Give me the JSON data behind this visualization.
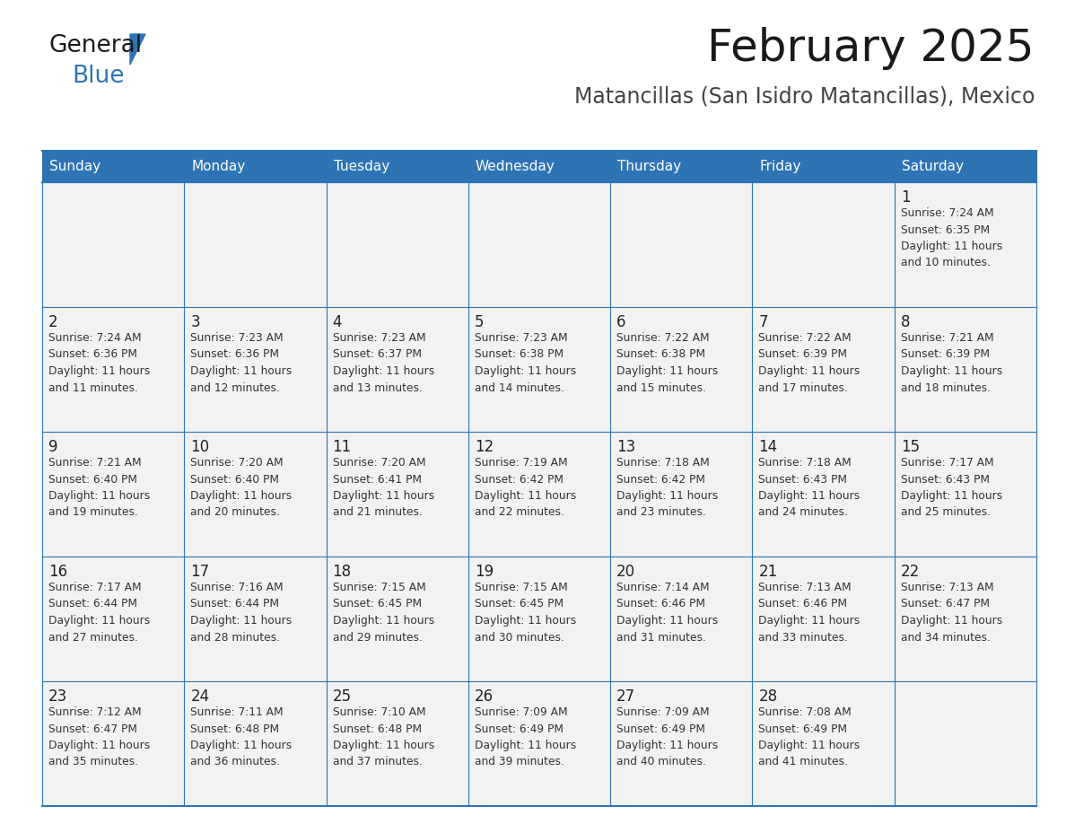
{
  "title": "February 2025",
  "subtitle": "Matancillas (San Isidro Matancillas), Mexico",
  "header_color": "#2e74b5",
  "header_text_color": "#ffffff",
  "cell_bg_even": "#f2f2f2",
  "cell_bg_odd": "#ffffff",
  "border_color": "#2e74b5",
  "day_headers": [
    "Sunday",
    "Monday",
    "Tuesday",
    "Wednesday",
    "Thursday",
    "Friday",
    "Saturday"
  ],
  "weeks": [
    [
      {
        "day": "",
        "info": ""
      },
      {
        "day": "",
        "info": ""
      },
      {
        "day": "",
        "info": ""
      },
      {
        "day": "",
        "info": ""
      },
      {
        "day": "",
        "info": ""
      },
      {
        "day": "",
        "info": ""
      },
      {
        "day": "1",
        "info": "Sunrise: 7:24 AM\nSunset: 6:35 PM\nDaylight: 11 hours\nand 10 minutes."
      }
    ],
    [
      {
        "day": "2",
        "info": "Sunrise: 7:24 AM\nSunset: 6:36 PM\nDaylight: 11 hours\nand 11 minutes."
      },
      {
        "day": "3",
        "info": "Sunrise: 7:23 AM\nSunset: 6:36 PM\nDaylight: 11 hours\nand 12 minutes."
      },
      {
        "day": "4",
        "info": "Sunrise: 7:23 AM\nSunset: 6:37 PM\nDaylight: 11 hours\nand 13 minutes."
      },
      {
        "day": "5",
        "info": "Sunrise: 7:23 AM\nSunset: 6:38 PM\nDaylight: 11 hours\nand 14 minutes."
      },
      {
        "day": "6",
        "info": "Sunrise: 7:22 AM\nSunset: 6:38 PM\nDaylight: 11 hours\nand 15 minutes."
      },
      {
        "day": "7",
        "info": "Sunrise: 7:22 AM\nSunset: 6:39 PM\nDaylight: 11 hours\nand 17 minutes."
      },
      {
        "day": "8",
        "info": "Sunrise: 7:21 AM\nSunset: 6:39 PM\nDaylight: 11 hours\nand 18 minutes."
      }
    ],
    [
      {
        "day": "9",
        "info": "Sunrise: 7:21 AM\nSunset: 6:40 PM\nDaylight: 11 hours\nand 19 minutes."
      },
      {
        "day": "10",
        "info": "Sunrise: 7:20 AM\nSunset: 6:40 PM\nDaylight: 11 hours\nand 20 minutes."
      },
      {
        "day": "11",
        "info": "Sunrise: 7:20 AM\nSunset: 6:41 PM\nDaylight: 11 hours\nand 21 minutes."
      },
      {
        "day": "12",
        "info": "Sunrise: 7:19 AM\nSunset: 6:42 PM\nDaylight: 11 hours\nand 22 minutes."
      },
      {
        "day": "13",
        "info": "Sunrise: 7:18 AM\nSunset: 6:42 PM\nDaylight: 11 hours\nand 23 minutes."
      },
      {
        "day": "14",
        "info": "Sunrise: 7:18 AM\nSunset: 6:43 PM\nDaylight: 11 hours\nand 24 minutes."
      },
      {
        "day": "15",
        "info": "Sunrise: 7:17 AM\nSunset: 6:43 PM\nDaylight: 11 hours\nand 25 minutes."
      }
    ],
    [
      {
        "day": "16",
        "info": "Sunrise: 7:17 AM\nSunset: 6:44 PM\nDaylight: 11 hours\nand 27 minutes."
      },
      {
        "day": "17",
        "info": "Sunrise: 7:16 AM\nSunset: 6:44 PM\nDaylight: 11 hours\nand 28 minutes."
      },
      {
        "day": "18",
        "info": "Sunrise: 7:15 AM\nSunset: 6:45 PM\nDaylight: 11 hours\nand 29 minutes."
      },
      {
        "day": "19",
        "info": "Sunrise: 7:15 AM\nSunset: 6:45 PM\nDaylight: 11 hours\nand 30 minutes."
      },
      {
        "day": "20",
        "info": "Sunrise: 7:14 AM\nSunset: 6:46 PM\nDaylight: 11 hours\nand 31 minutes."
      },
      {
        "day": "21",
        "info": "Sunrise: 7:13 AM\nSunset: 6:46 PM\nDaylight: 11 hours\nand 33 minutes."
      },
      {
        "day": "22",
        "info": "Sunrise: 7:13 AM\nSunset: 6:47 PM\nDaylight: 11 hours\nand 34 minutes."
      }
    ],
    [
      {
        "day": "23",
        "info": "Sunrise: 7:12 AM\nSunset: 6:47 PM\nDaylight: 11 hours\nand 35 minutes."
      },
      {
        "day": "24",
        "info": "Sunrise: 7:11 AM\nSunset: 6:48 PM\nDaylight: 11 hours\nand 36 minutes."
      },
      {
        "day": "25",
        "info": "Sunrise: 7:10 AM\nSunset: 6:48 PM\nDaylight: 11 hours\nand 37 minutes."
      },
      {
        "day": "26",
        "info": "Sunrise: 7:09 AM\nSunset: 6:49 PM\nDaylight: 11 hours\nand 39 minutes."
      },
      {
        "day": "27",
        "info": "Sunrise: 7:09 AM\nSunset: 6:49 PM\nDaylight: 11 hours\nand 40 minutes."
      },
      {
        "day": "28",
        "info": "Sunrise: 7:08 AM\nSunset: 6:49 PM\nDaylight: 11 hours\nand 41 minutes."
      },
      {
        "day": "",
        "info": ""
      }
    ]
  ],
  "logo_color_general": "#1a1a1a",
  "logo_color_blue": "#2e74b5",
  "logo_triangle_color": "#2e74b5",
  "title_color": "#1a1a1a",
  "subtitle_color": "#444444"
}
